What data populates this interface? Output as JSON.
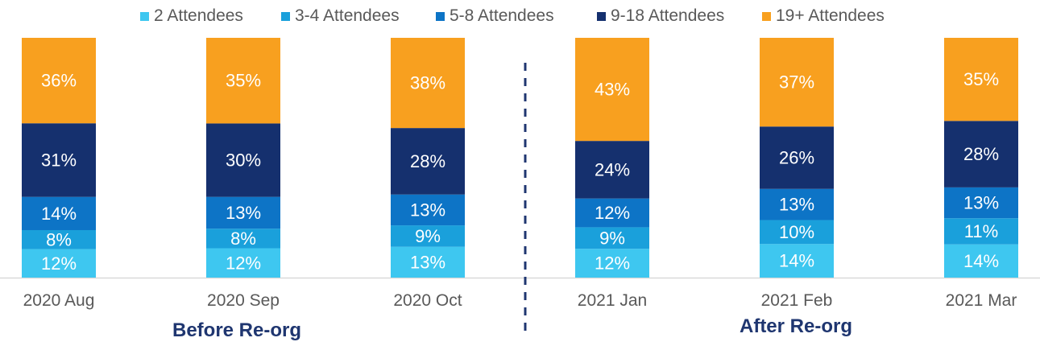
{
  "chart_data": {
    "type": "bar",
    "stacked": true,
    "normalized_percent": true,
    "categories": [
      "2020 Aug",
      "2020 Sep",
      "2020 Oct",
      "2021 Jan",
      "2021 Feb",
      "2021 Mar"
    ],
    "series": [
      {
        "name": "2 Attendees",
        "color": "#3ec7f0",
        "values": [
          12,
          12,
          13,
          12,
          14,
          14
        ],
        "labels": [
          "12%",
          "12%",
          "13%",
          "12%",
          "14%",
          "14%"
        ]
      },
      {
        "name": "3-4 Attendees",
        "color": "#1aa0db",
        "values": [
          8,
          8,
          9,
          9,
          10,
          11
        ],
        "labels": [
          "8%",
          "8%",
          "9%",
          "9%",
          "10%",
          "11%"
        ]
      },
      {
        "name": "5-8 Attendees",
        "color": "#0d74c6",
        "values": [
          14,
          13,
          13,
          12,
          13,
          13
        ],
        "labels": [
          "14%",
          "13%",
          "13%",
          "12%",
          "13%",
          "13%"
        ]
      },
      {
        "name": "9-18 Attendees",
        "color": "#15306e",
        "values": [
          31,
          30,
          28,
          24,
          26,
          28
        ],
        "labels": [
          "31%",
          "30%",
          "28%",
          "24%",
          "26%",
          "28%"
        ]
      },
      {
        "name": "19+ Attendees",
        "color": "#f8a01f",
        "values": [
          36,
          35,
          38,
          43,
          37,
          35
        ],
        "labels": [
          "36%",
          "35%",
          "38%",
          "43%",
          "37%",
          "35%"
        ]
      }
    ],
    "ylim": [
      0,
      100
    ],
    "legend_position": "top",
    "groups": [
      {
        "label": "Before Re-org",
        "categories": [
          "2020 Aug",
          "2020 Sep",
          "2020 Oct"
        ]
      },
      {
        "label": "After Re-org",
        "categories": [
          "2021 Jan",
          "2021 Feb",
          "2021 Mar"
        ]
      }
    ],
    "divider": "dashed line between 2020 Oct and 2021 Jan"
  },
  "colors": {
    "divider": "#1f3670",
    "axis_text": "#595959",
    "group_text": "#1f3670",
    "baseline": "#d9d9d9",
    "label_on_dark": "#ffffff",
    "label_on_light": "#ffffff"
  }
}
